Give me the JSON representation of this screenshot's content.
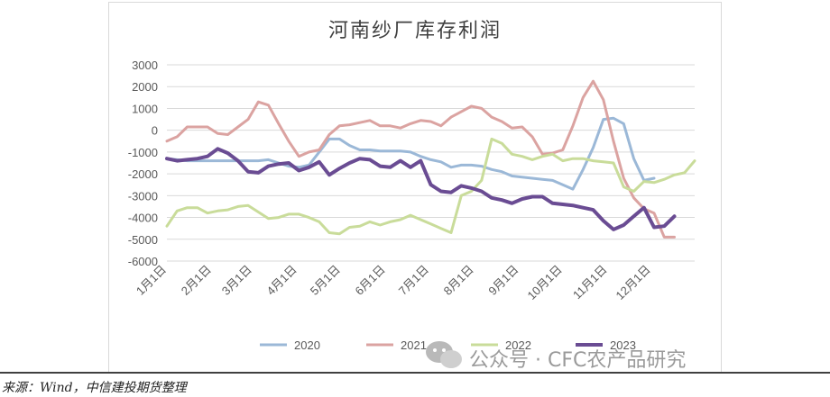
{
  "chart_data": {
    "type": "line",
    "title": "河南纱厂库存利润",
    "xlabel": "",
    "ylabel": "",
    "ylim": [
      -6000,
      3000
    ],
    "yticks": [
      3000,
      2000,
      1000,
      0,
      -1000,
      -2000,
      -3000,
      -4000,
      -5000,
      -6000
    ],
    "xlim": [
      0,
      52
    ],
    "x_tick_labels": [
      "1月1日",
      "2月1日",
      "3月1日",
      "4月1日",
      "5月1日",
      "6月1日",
      "7月1日",
      "8月1日",
      "9月1日",
      "10月1日",
      "11月1日",
      "12月1日"
    ],
    "x_tick_positions": [
      0,
      4.43,
      8.43,
      12.86,
      17.14,
      21.57,
      25.86,
      30.29,
      34.71,
      39,
      43.43,
      47.71
    ],
    "grid": true,
    "legend_position": "bottom",
    "series": [
      {
        "name": "2020",
        "color": "#9bb8d7",
        "width": 3,
        "x": [
          0,
          1,
          2,
          3,
          4,
          5,
          6,
          7,
          8,
          9,
          10,
          11,
          12,
          13,
          14,
          15,
          16,
          17,
          18,
          19,
          20,
          21,
          22,
          23,
          24,
          25,
          26,
          27,
          28,
          29,
          30,
          31,
          32,
          33,
          34,
          35,
          36,
          37,
          38,
          39,
          40,
          41,
          42,
          43,
          44,
          45,
          46,
          47,
          48
        ],
        "y": [
          -1300,
          -1350,
          -1400,
          -1400,
          -1400,
          -1400,
          -1400,
          -1400,
          -1400,
          -1400,
          -1350,
          -1500,
          -1650,
          -1700,
          -1600,
          -1000,
          -400,
          -400,
          -700,
          -900,
          -900,
          -950,
          -950,
          -950,
          -1000,
          -1200,
          -1350,
          -1450,
          -1700,
          -1600,
          -1600,
          -1650,
          -1800,
          -1900,
          -2100,
          -2150,
          -2200,
          -2250,
          -2300,
          -2500,
          -2700,
          -1800,
          -800,
          500,
          550,
          300,
          -1300,
          -2300,
          -2200
        ]
      },
      {
        "name": "2021",
        "color": "#dba3a1",
        "width": 3,
        "x": [
          0,
          1,
          2,
          3,
          4,
          5,
          6,
          7,
          8,
          9,
          10,
          11,
          12,
          13,
          14,
          15,
          16,
          17,
          18,
          19,
          20,
          21,
          22,
          23,
          24,
          25,
          26,
          27,
          28,
          29,
          30,
          31,
          32,
          33,
          34,
          35,
          36,
          37,
          38,
          39,
          40,
          41,
          42,
          43,
          44,
          45,
          46,
          47,
          48,
          49,
          50
        ],
        "y": [
          -500,
          -300,
          150,
          150,
          150,
          -150,
          -200,
          150,
          500,
          1300,
          1150,
          300,
          -500,
          -1200,
          -1000,
          -900,
          -200,
          200,
          250,
          350,
          450,
          200,
          200,
          100,
          300,
          450,
          400,
          200,
          600,
          850,
          1100,
          1000,
          600,
          400,
          100,
          150,
          -300,
          -1100,
          -1050,
          -900,
          200,
          1500,
          2250,
          1400,
          -500,
          -2200,
          -3100,
          -3600,
          -3800,
          -4900,
          -4900
        ]
      },
      {
        "name": "2022",
        "color": "#c9dc9a",
        "width": 3,
        "x": [
          0,
          1,
          2,
          3,
          4,
          5,
          6,
          7,
          8,
          9,
          10,
          11,
          12,
          13,
          14,
          15,
          16,
          17,
          18,
          19,
          20,
          21,
          22,
          23,
          24,
          25,
          26,
          27,
          28,
          29,
          30,
          31,
          32,
          33,
          34,
          35,
          36,
          37,
          38,
          39,
          40,
          41,
          42,
          43,
          44,
          45,
          46,
          47,
          48,
          49,
          50,
          51,
          52
        ],
        "y": [
          -4400,
          -3700,
          -3550,
          -3550,
          -3800,
          -3700,
          -3650,
          -3500,
          -3450,
          -3750,
          -4050,
          -4000,
          -3850,
          -3850,
          -4000,
          -4200,
          -4700,
          -4750,
          -4450,
          -4400,
          -4200,
          -4350,
          -4200,
          -4100,
          -3900,
          -4100,
          -4300,
          -4500,
          -4700,
          -3000,
          -2800,
          -2300,
          -400,
          -600,
          -1100,
          -1200,
          -1350,
          -1200,
          -1100,
          -1400,
          -1300,
          -1300,
          -1400,
          -1450,
          -1500,
          -2600,
          -2800,
          -2350,
          -2400,
          -2250,
          -2050,
          -1950,
          -1400
        ]
      },
      {
        "name": "2023",
        "color": "#6a4c93",
        "width": 4,
        "x": [
          0,
          1,
          2,
          3,
          4,
          5,
          6,
          7,
          8,
          9,
          10,
          11,
          12,
          13,
          14,
          15,
          16,
          17,
          18,
          19,
          20,
          21,
          22,
          23,
          24,
          25,
          26,
          27,
          28,
          29,
          30,
          31,
          32,
          33,
          34,
          35,
          36,
          37,
          38,
          39,
          40,
          41,
          42,
          43,
          44,
          45,
          46,
          47,
          48,
          49,
          50
        ],
        "y": [
          -1300,
          -1400,
          -1350,
          -1300,
          -1200,
          -850,
          -1050,
          -1400,
          -1900,
          -1950,
          -1650,
          -1550,
          -1500,
          -1850,
          -1700,
          -1450,
          -2050,
          -1750,
          -1500,
          -1300,
          -1350,
          -1650,
          -1700,
          -1400,
          -1700,
          -1400,
          -2500,
          -2800,
          -2850,
          -2550,
          -2650,
          -2800,
          -3100,
          -3200,
          -3350,
          -3150,
          -3050,
          -3050,
          -3350,
          -3400,
          -3450,
          -3550,
          -3650,
          -4150,
          -4550,
          -4350,
          -3950,
          -3550,
          -4450,
          -4400,
          -3950
        ]
      }
    ]
  },
  "watermark": {
    "text": "公众号 · CFC农产品研究",
    "icon": "wechat-icon"
  },
  "source": {
    "text": "来源：Wind，中信建投期货整理"
  }
}
